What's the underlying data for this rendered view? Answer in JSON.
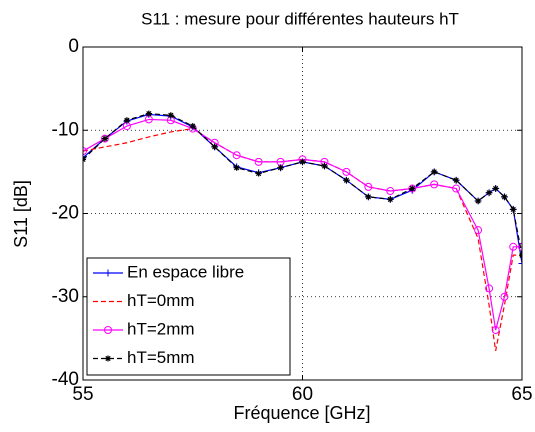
{
  "chart_data": {
    "type": "line",
    "title": "S11 : mesure pour différentes hauteurs hT",
    "xlabel": "Fréquence [GHz]",
    "ylabel": "S11 [dB]",
    "x": [
      55,
      55.5,
      56,
      56.5,
      57,
      57.5,
      58,
      58.5,
      59,
      59.5,
      60,
      60.5,
      61,
      61.5,
      62,
      62.5,
      63,
      63.5,
      64,
      64.25,
      64.4,
      64.6,
      64.8,
      65
    ],
    "series": [
      {
        "name": "En espace libre",
        "color": "#0000ff",
        "linestyle": "solid",
        "marker": "plus",
        "values": [
          -13.3,
          -11,
          -8.9,
          -8.1,
          -8.3,
          -9.6,
          -12,
          -14.4,
          -15.1,
          -14.5,
          -13.8,
          -14.3,
          -16,
          -18,
          -18.3,
          -17.2,
          -15,
          -16,
          -18.5,
          -17.5,
          -17,
          -18,
          -19.5,
          -26
        ]
      },
      {
        "name": "hT=0mm",
        "color": "#ff0000",
        "linestyle": "dashed",
        "marker": "none",
        "values": [
          -12.5,
          -12,
          -11.5,
          -10.8,
          -10.2,
          -9.8,
          -11.5,
          -13,
          -13.8,
          -13.8,
          -13.5,
          -13.8,
          -15,
          -16.8,
          -17.3,
          -17,
          -16.5,
          -17,
          -23,
          -31,
          -36.5,
          -31,
          -25,
          -25
        ]
      },
      {
        "name": "hT=2mm",
        "color": "#ff00ff",
        "linestyle": "solid",
        "marker": "circle",
        "values": [
          -12.5,
          -11,
          -9.5,
          -8.7,
          -8.8,
          -9.8,
          -11.5,
          -13,
          -13.8,
          -13.8,
          -13.5,
          -13.8,
          -15,
          -16.8,
          -17.3,
          -17,
          -16.5,
          -17,
          -22,
          -29,
          -34,
          -30,
          -24,
          -24
        ]
      },
      {
        "name": "hT=5mm",
        "color": "#000000",
        "linestyle": "dashed",
        "marker": "star",
        "values": [
          -13.5,
          -11,
          -8.8,
          -8,
          -8.2,
          -9.5,
          -12,
          -14.5,
          -15.2,
          -14.5,
          -13.8,
          -14.3,
          -16,
          -18,
          -18.3,
          -17,
          -15,
          -16,
          -18.5,
          -17.5,
          -17,
          -18,
          -19.5,
          -25
        ]
      }
    ],
    "xlim": [
      55,
      65
    ],
    "xticks": [
      55,
      60,
      65
    ],
    "ylim": [
      -40,
      0
    ],
    "yticks": [
      -40,
      -30,
      -20,
      -10,
      0
    ],
    "grid": true,
    "legend": "lower left"
  }
}
